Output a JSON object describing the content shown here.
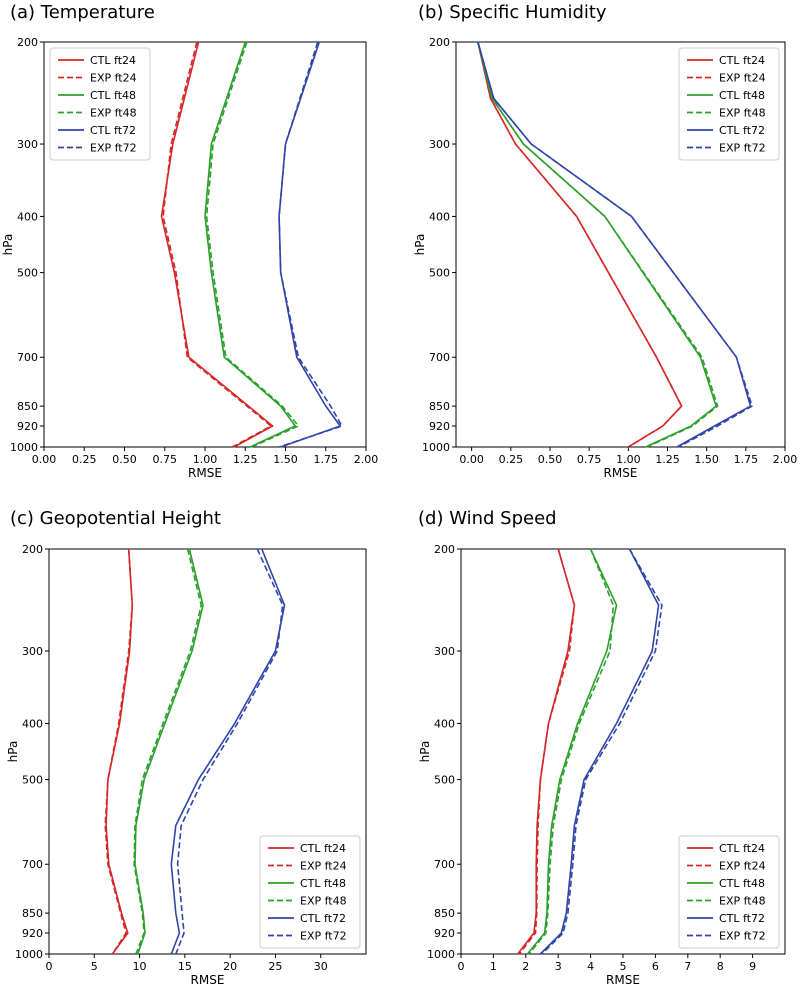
{
  "figure": {
    "description_free": true
  },
  "chart_data": [
    {
      "type": "line",
      "title": "(a)  Temperature",
      "xlabel": "RMSE",
      "ylabel": "hPa",
      "xlim": [
        0,
        2.0
      ],
      "xticks": [
        "0.00",
        "0.25",
        "0.50",
        "0.75",
        "1.00",
        "1.25",
        "1.50",
        "1.75",
        "2.00"
      ],
      "xtick_values": [
        0,
        0.25,
        0.5,
        0.75,
        1.0,
        1.25,
        1.5,
        1.75,
        2.0
      ],
      "ylim": [
        200,
        1000
      ],
      "yticks": [
        "200",
        "300",
        "400",
        "500",
        "700",
        "850",
        "920",
        "1000"
      ],
      "levels": [
        200,
        300,
        400,
        500,
        700,
        850,
        920,
        1000
      ],
      "legend_loc": "top-left",
      "series": [
        {
          "name": "CTL ft24",
          "color": "#d62728",
          "dash": false,
          "values": [
            0.96,
            0.8,
            0.73,
            0.81,
            0.9,
            1.27,
            1.42,
            1.18
          ]
        },
        {
          "name": "EXP ft24",
          "color": "#d62728",
          "dash": true,
          "values": [
            0.95,
            0.79,
            0.74,
            0.82,
            0.89,
            1.26,
            1.41,
            1.17
          ]
        },
        {
          "name": "CTL ft48",
          "color": "#2ca02c",
          "dash": false,
          "values": [
            1.25,
            1.04,
            1.0,
            1.04,
            1.12,
            1.47,
            1.56,
            1.28
          ]
        },
        {
          "name": "EXP ft48",
          "color": "#2ca02c",
          "dash": true,
          "values": [
            1.26,
            1.05,
            1.01,
            1.05,
            1.13,
            1.48,
            1.58,
            1.29
          ]
        },
        {
          "name": "CTL ft72",
          "color": "#3045a8",
          "dash": false,
          "values": [
            1.71,
            1.5,
            1.46,
            1.47,
            1.57,
            1.75,
            1.84,
            1.47
          ]
        },
        {
          "name": "EXP ft72",
          "color": "#3045a8",
          "dash": true,
          "values": [
            1.7,
            1.5,
            1.46,
            1.47,
            1.58,
            1.78,
            1.85,
            1.46
          ]
        }
      ]
    },
    {
      "type": "line",
      "title": "(b) Specific Humidity",
      "xlabel": "RMSE",
      "ylabel": "hPa",
      "xlim": [
        -0.1,
        2.0
      ],
      "xticks": [
        "0.00",
        "0.25",
        "0.50",
        "0.75",
        "1.00",
        "1.25",
        "1.50",
        "1.75",
        "2.00"
      ],
      "xtick_values": [
        0,
        0.25,
        0.5,
        0.75,
        1.0,
        1.25,
        1.5,
        1.75,
        2.0
      ],
      "ylim": [
        200,
        1000
      ],
      "yticks": [
        "200",
        "300",
        "400",
        "500",
        "700",
        "850",
        "920",
        "1000"
      ],
      "levels": [
        200,
        250,
        300,
        400,
        700,
        850,
        920,
        1000
      ],
      "legend_loc": "top-right",
      "series": [
        {
          "name": "CTL ft24",
          "color": "#d62728",
          "dash": false,
          "values": [
            0.04,
            0.12,
            0.28,
            0.67,
            1.18,
            1.34,
            1.22,
            1.0
          ]
        },
        {
          "name": "EXP ft24",
          "color": "#d62728",
          "dash": true,
          "values": [
            0.04,
            0.12,
            0.28,
            0.67,
            1.18,
            1.34,
            1.22,
            1.0
          ]
        },
        {
          "name": "CTL ft48",
          "color": "#2ca02c",
          "dash": false,
          "values": [
            0.04,
            0.13,
            0.33,
            0.85,
            1.46,
            1.56,
            1.4,
            1.11
          ]
        },
        {
          "name": "EXP ft48",
          "color": "#2ca02c",
          "dash": true,
          "values": [
            0.04,
            0.13,
            0.33,
            0.85,
            1.47,
            1.57,
            1.41,
            1.12
          ]
        },
        {
          "name": "CTL ft72",
          "color": "#3045a8",
          "dash": false,
          "values": [
            0.04,
            0.14,
            0.38,
            1.02,
            1.69,
            1.78,
            1.55,
            1.31
          ]
        },
        {
          "name": "EXP ft72",
          "color": "#3045a8",
          "dash": true,
          "values": [
            0.04,
            0.14,
            0.38,
            1.02,
            1.69,
            1.79,
            1.57,
            1.32
          ]
        }
      ]
    },
    {
      "type": "line",
      "title": "(c) Geopotential Height",
      "xlabel": "RMSE",
      "ylabel": "hPa",
      "xlim": [
        0,
        35
      ],
      "xticks": [
        "0",
        "5",
        "10",
        "15",
        "20",
        "25",
        "30"
      ],
      "xtick_values": [
        0,
        5,
        10,
        15,
        20,
        25,
        30
      ],
      "ylim": [
        200,
        1000
      ],
      "yticks": [
        "200",
        "300",
        "400",
        "500",
        "700",
        "850",
        "920",
        "1000"
      ],
      "levels": [
        200,
        250,
        300,
        400,
        500,
        600,
        700,
        850,
        920,
        1000
      ],
      "legend_loc": "bottom-right",
      "series": [
        {
          "name": "CTL ft24",
          "color": "#d62728",
          "dash": false,
          "values": [
            8.8,
            9.2,
            8.9,
            7.8,
            6.5,
            6.3,
            6.6,
            8.0,
            8.7,
            7.0
          ]
        },
        {
          "name": "EXP ft24",
          "color": "#d62728",
          "dash": true,
          "values": [
            8.8,
            9.2,
            8.8,
            7.7,
            6.5,
            6.2,
            6.5,
            7.9,
            8.5,
            7.0
          ]
        },
        {
          "name": "CTL ft48",
          "color": "#2ca02c",
          "dash": false,
          "values": [
            15.5,
            17.0,
            15.8,
            12.8,
            10.5,
            9.6,
            9.5,
            10.4,
            10.6,
            9.8
          ]
        },
        {
          "name": "EXP ft48",
          "color": "#2ca02c",
          "dash": true,
          "values": [
            15.3,
            16.8,
            15.6,
            12.6,
            10.3,
            9.5,
            9.4,
            10.3,
            10.5,
            9.6
          ]
        },
        {
          "name": "CTL ft72",
          "color": "#3045a8",
          "dash": false,
          "values": [
            23.5,
            26.0,
            25.0,
            20.5,
            16.5,
            14.0,
            13.5,
            14.0,
            14.4,
            13.5
          ]
        },
        {
          "name": "EXP ft72",
          "color": "#3045a8",
          "dash": true,
          "values": [
            23.0,
            25.8,
            25.2,
            20.8,
            17.0,
            14.6,
            14.2,
            14.7,
            14.9,
            14.0
          ]
        }
      ]
    },
    {
      "type": "line",
      "title": "(d) Wind Speed",
      "xlabel": "RMSE",
      "ylabel": "hPa",
      "xlim": [
        0,
        10
      ],
      "xticks": [
        "0",
        "1",
        "2",
        "3",
        "4",
        "5",
        "6",
        "7",
        "8",
        "9"
      ],
      "xtick_values": [
        0,
        1,
        2,
        3,
        4,
        5,
        6,
        7,
        8,
        9
      ],
      "ylim": [
        200,
        1000
      ],
      "yticks": [
        "200",
        "300",
        "400",
        "500",
        "700",
        "850",
        "920",
        "1000"
      ],
      "levels": [
        200,
        250,
        300,
        400,
        500,
        600,
        700,
        850,
        920,
        1000
      ],
      "legend_loc": "bottom-right",
      "series": [
        {
          "name": "CTL ft24",
          "color": "#d62728",
          "dash": false,
          "values": [
            3.0,
            3.5,
            3.3,
            2.7,
            2.45,
            2.35,
            2.32,
            2.32,
            2.25,
            1.75
          ]
        },
        {
          "name": "EXP ft24",
          "color": "#d62728",
          "dash": true,
          "values": [
            3.0,
            3.5,
            3.35,
            2.7,
            2.45,
            2.38,
            2.35,
            2.34,
            2.3,
            1.8
          ]
        },
        {
          "name": "CTL ft48",
          "color": "#2ca02c",
          "dash": false,
          "values": [
            4.0,
            4.8,
            4.5,
            3.6,
            3.05,
            2.8,
            2.7,
            2.65,
            2.58,
            2.05
          ]
        },
        {
          "name": "EXP ft48",
          "color": "#2ca02c",
          "dash": true,
          "values": [
            4.0,
            4.7,
            4.6,
            3.65,
            3.1,
            2.85,
            2.75,
            2.68,
            2.62,
            2.1
          ]
        },
        {
          "name": "CTL ft72",
          "color": "#3045a8",
          "dash": false,
          "values": [
            5.2,
            6.1,
            5.9,
            4.8,
            3.8,
            3.5,
            3.4,
            3.25,
            3.1,
            2.45
          ]
        },
        {
          "name": "EXP ft72",
          "color": "#3045a8",
          "dash": true,
          "values": [
            5.2,
            6.2,
            6.0,
            4.9,
            3.85,
            3.55,
            3.45,
            3.3,
            3.15,
            2.5
          ]
        }
      ]
    }
  ]
}
